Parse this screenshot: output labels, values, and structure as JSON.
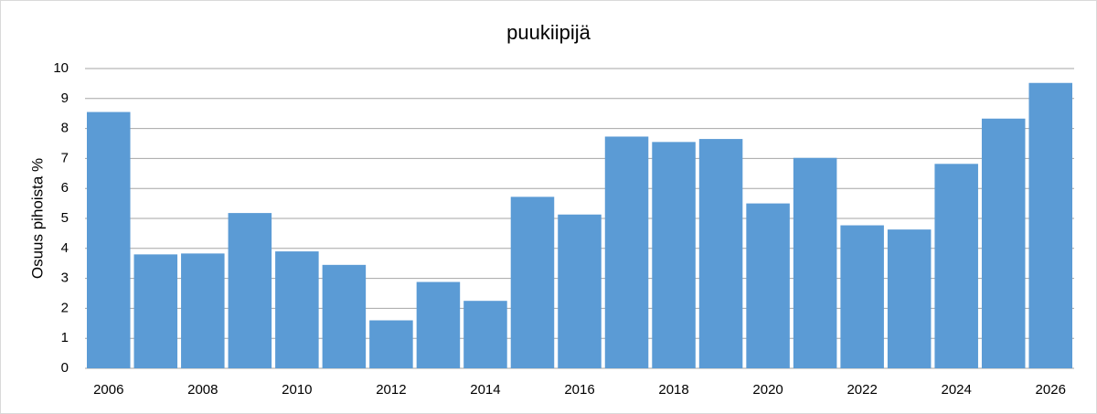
{
  "chart_data": {
    "type": "bar",
    "title": "puukiipijä",
    "y_label": "Osuus pihoista %",
    "categories": [
      "2006",
      null,
      "2008",
      null,
      "2010",
      null,
      "2012",
      null,
      "2014",
      null,
      "2016",
      null,
      "2018",
      null,
      "2020",
      null,
      "2022",
      null,
      "2024",
      null,
      "2026"
    ],
    "values": [
      8.55,
      3.8,
      3.83,
      5.18,
      3.9,
      3.45,
      1.6,
      2.88,
      2.25,
      5.72,
      5.13,
      7.73,
      7.55,
      7.65,
      5.5,
      7.02,
      4.77,
      4.63,
      6.82,
      8.33,
      9.52
    ],
    "color": "#5b9bd5",
    "ylim": [
      0,
      10
    ],
    "yticks": [
      0,
      1,
      2,
      3,
      4,
      5,
      6,
      7,
      8,
      9,
      10
    ],
    "grid": true
  }
}
